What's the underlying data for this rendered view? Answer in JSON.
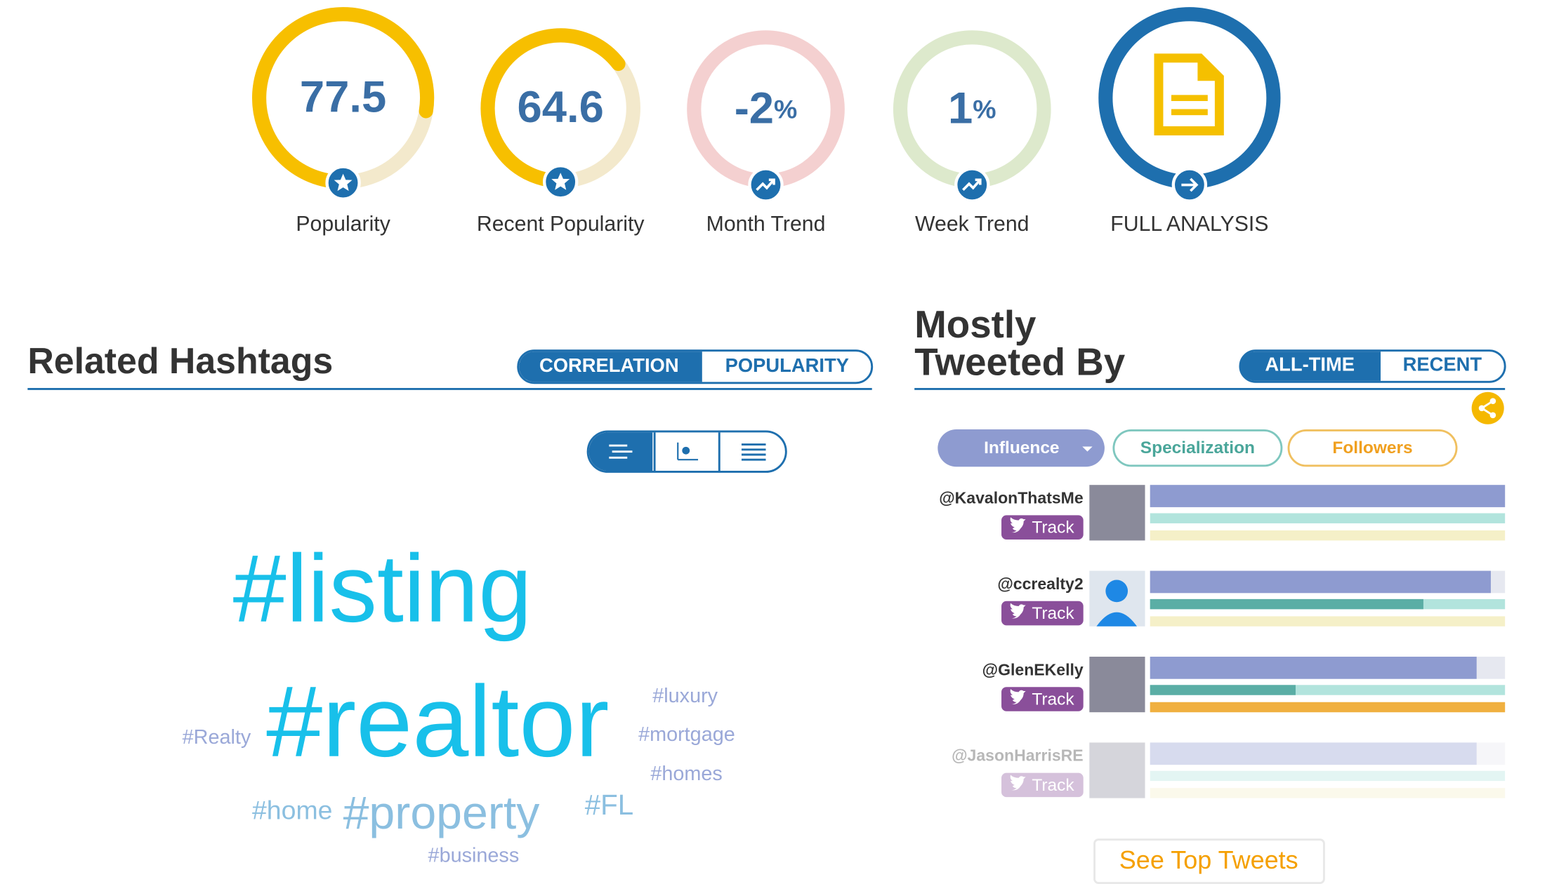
{
  "metrics": [
    {
      "value": 77.5,
      "label": "Popularity"
    },
    {
      "value": 64.6,
      "label": "Recent Popularity"
    },
    {
      "value": -2,
      "unit": "%",
      "label": "Month Trend"
    },
    {
      "value": 1,
      "unit": "%",
      "label": "Week Trend"
    }
  ],
  "full_analysis": "FULL ANALYSIS",
  "hashtags": {
    "title": "Related Hashtags",
    "tabs": [
      "CORRELATION",
      "POPULARITY"
    ],
    "words": [
      "#listing",
      "#realtor",
      "#luxury",
      "#mortgage",
      "#Realty",
      "#homes",
      "#home",
      "#property",
      "#FL",
      "#business"
    ]
  },
  "tweeters": {
    "title_lines": [
      "Mostly",
      "Tweeted By"
    ],
    "tabs": [
      "ALL-TIME",
      "RECENT"
    ],
    "filters": [
      "Influence",
      "Specialization",
      "Followers"
    ],
    "users": [
      {
        "handle": "@KavalonThatsMe",
        "track": "Track",
        "bars": [
          100,
          0,
          0
        ]
      },
      {
        "handle": "@ccrealty2",
        "track": "Track",
        "bars": [
          96,
          77,
          0
        ]
      },
      {
        "handle": "@GlenEKelly",
        "track": "Track",
        "bars": [
          92,
          41,
          100
        ]
      },
      {
        "handle": "@JasonHarrisRE",
        "track": "Track",
        "bars": [
          92,
          0,
          0
        ]
      }
    ]
  },
  "button": "See Top Tweets"
}
